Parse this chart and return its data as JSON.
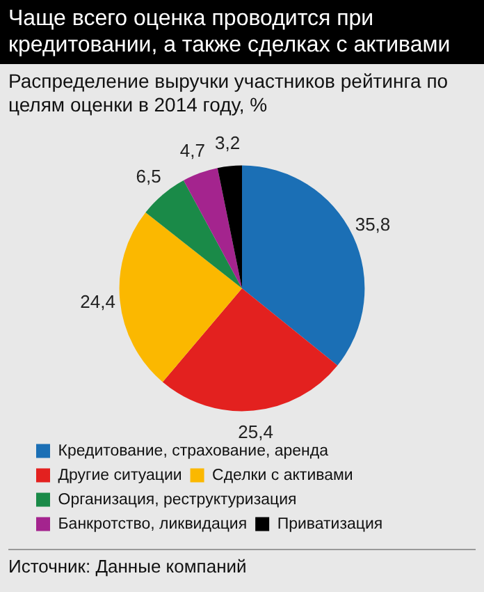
{
  "chart_data": {
    "type": "pie",
    "title": "Чаще всего оценка проводится при кредитовании, а также сделках с активами",
    "subtitle": "Распределение выручки участников рейтинга по целям оценки в 2014 году, %",
    "categories": [
      "Кредитование, страхование, аренда",
      "Другие ситуации",
      "Сделки с активами",
      "Организация, реструктуризация",
      "Банкротство, ликвидация",
      "Приватизация"
    ],
    "values": [
      35.8,
      25.4,
      24.4,
      6.5,
      4.7,
      3.2
    ],
    "colors": [
      "#1b6fb5",
      "#e3211f",
      "#fbb800",
      "#1a8a48",
      "#a4248e",
      "#000000"
    ],
    "value_labels": [
      "35,8",
      "25,4",
      "24,4",
      "6,5",
      "4,7",
      "3,2"
    ],
    "legend": "bottom",
    "annotations": [
      "Источник: Данные компаний"
    ]
  }
}
